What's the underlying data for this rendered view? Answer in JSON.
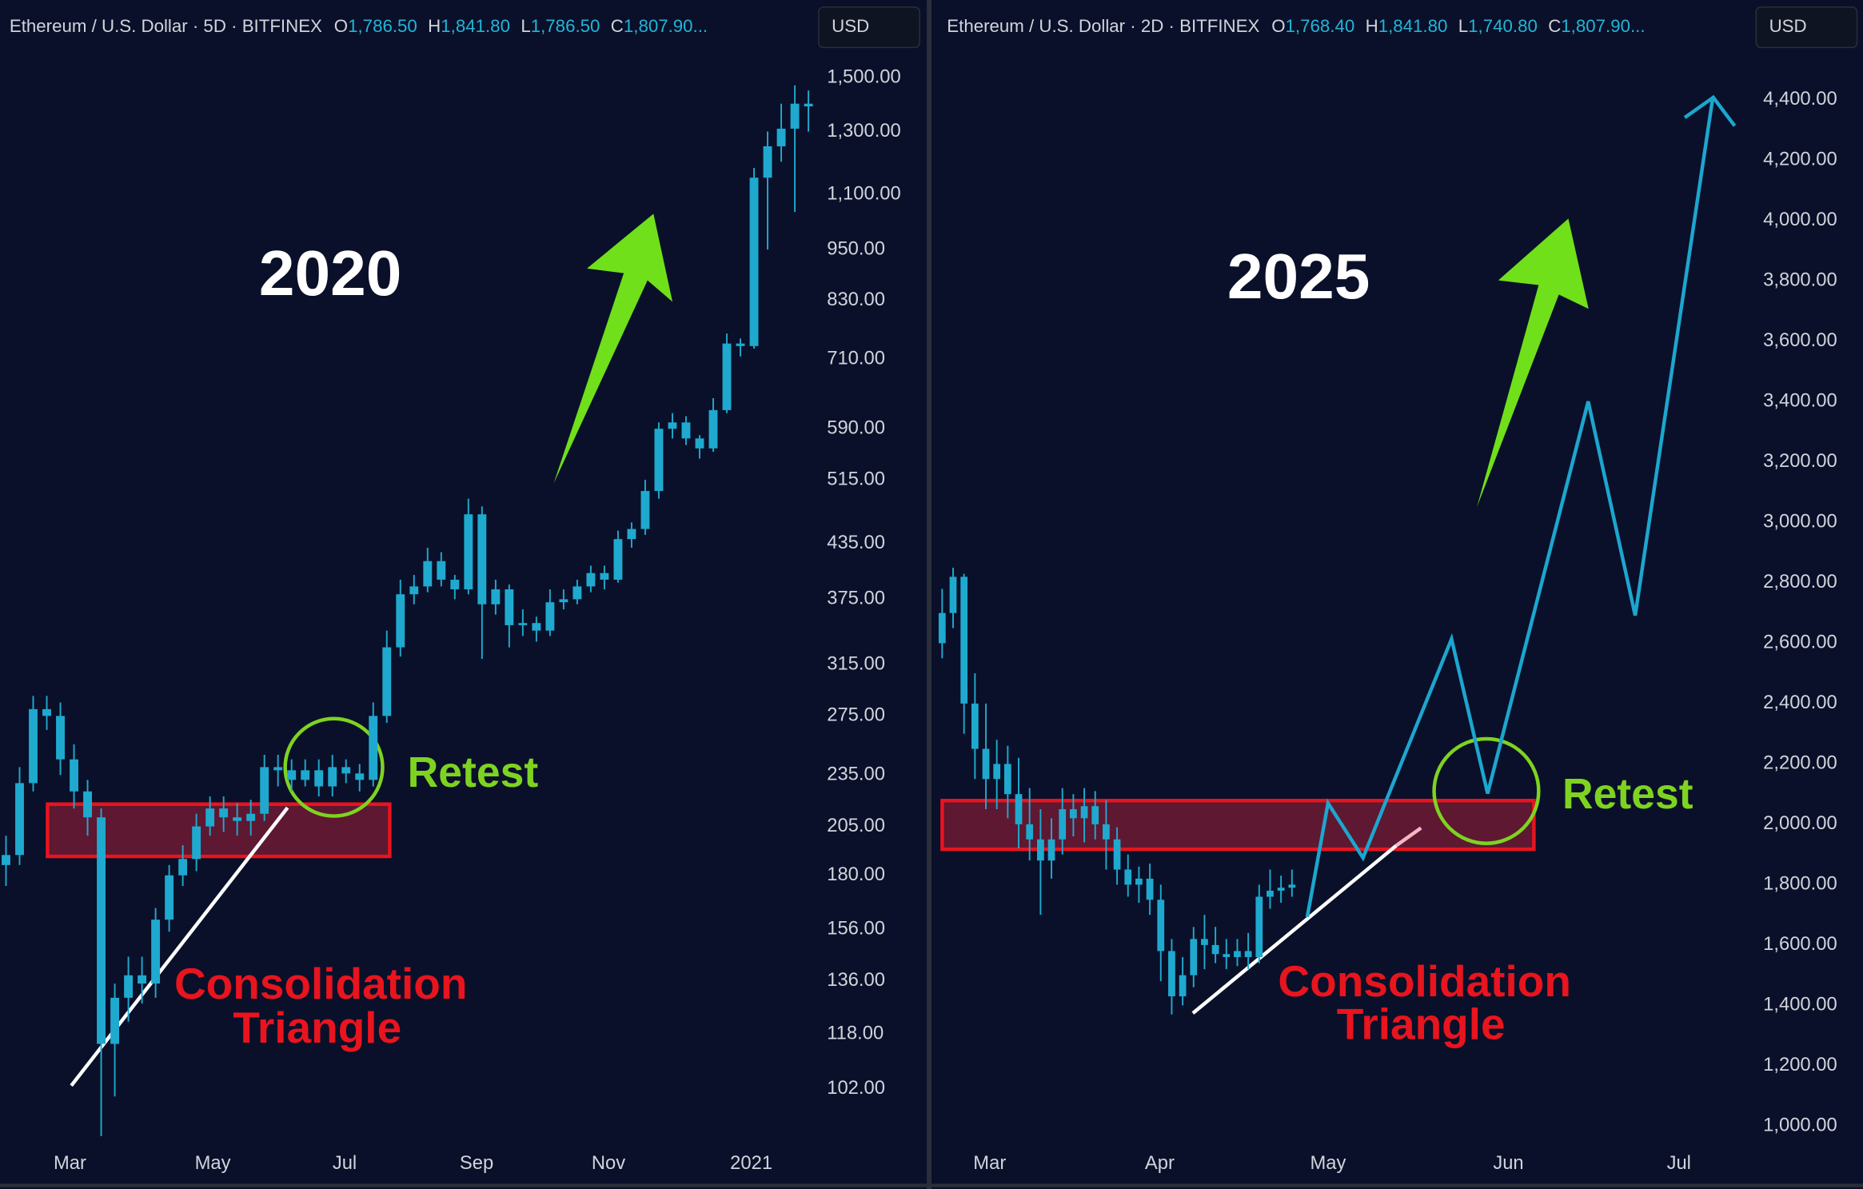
{
  "chart_data": [
    {
      "type": "candlestick",
      "symbol": "Ethereum / U.S. Dollar · 5D · BITFINEX",
      "ohlc": [
        {
          "key": "O",
          "value": "1,786.50"
        },
        {
          "key": "H",
          "value": "1,841.80"
        },
        {
          "key": "L",
          "value": "1,786.50"
        },
        {
          "key": "C",
          "value": "1,807.90..."
        }
      ],
      "currency": "USD",
      "title": "2020",
      "annotations": {
        "retest": "Retest",
        "pattern": [
          "Consolidation",
          "Triangle"
        ]
      },
      "log_scale": true,
      "xlim": [
        -0.44,
        67.7
      ],
      "xticks": [
        {
          "value": 4.7,
          "label": "Mar"
        },
        {
          "value": 15.2,
          "label": "May"
        },
        {
          "value": 24.9,
          "label": "Jul"
        },
        {
          "value": 34.6,
          "label": "Sep"
        },
        {
          "value": 44.3,
          "label": "Nov"
        },
        {
          "value": 54.8,
          "label": "2021"
        }
      ],
      "ylim": [
        89,
        1600
      ],
      "yticks": [
        {
          "value": 1500,
          "label": "1,500.00"
        },
        {
          "value": 1300,
          "label": "1,300.00"
        },
        {
          "value": 1100,
          "label": "1,100.00"
        },
        {
          "value": 950,
          "label": "950.00"
        },
        {
          "value": 830,
          "label": "830.00"
        },
        {
          "value": 710,
          "label": "710.00"
        },
        {
          "value": 590,
          "label": "590.00"
        },
        {
          "value": 515,
          "label": "515.00"
        },
        {
          "value": 435,
          "label": "435.00"
        },
        {
          "value": 375,
          "label": "375.00"
        },
        {
          "value": 315,
          "label": "315.00"
        },
        {
          "value": 275,
          "label": "275.00"
        },
        {
          "value": 235,
          "label": "235.00"
        },
        {
          "value": 205,
          "label": "205.00"
        },
        {
          "value": 180,
          "label": "180.00"
        },
        {
          "value": 156,
          "label": "156.00"
        },
        {
          "value": 136,
          "label": "136.00"
        },
        {
          "value": 118,
          "label": "118.00"
        },
        {
          "value": 102,
          "label": "102.00"
        }
      ],
      "series": [
        {
          "type": "candlestick",
          "color": "#1fa9cf",
          "open": [
            185,
            190,
            230,
            280,
            275,
            245,
            225,
            210,
            115,
            130,
            138,
            135,
            160,
            180,
            188,
            205,
            215,
            210,
            208,
            212,
            240,
            238,
            232,
            238,
            228,
            240,
            236,
            232,
            275,
            330,
            380,
            388,
            415,
            395,
            385,
            470,
            370,
            385,
            350,
            352,
            345,
            372,
            375,
            388,
            402,
            395,
            440,
            452,
            500,
            590,
            600,
            575,
            560,
            620,
            740,
            735,
            1150,
            1250,
            1310,
            1400
          ],
          "high": [
            200,
            240,
            290,
            290,
            285,
            255,
            232,
            215,
            135,
            145,
            145,
            165,
            185,
            195,
            212,
            222,
            222,
            218,
            220,
            248,
            248,
            245,
            245,
            245,
            248,
            245,
            242,
            285,
            345,
            395,
            400,
            430,
            425,
            400,
            490,
            480,
            395,
            390,
            365,
            358,
            385,
            385,
            395,
            410,
            410,
            450,
            460,
            515,
            600,
            615,
            610,
            580,
            640,
            760,
            750,
            1180,
            1300,
            1400,
            1470,
            1450
          ],
          "low": [
            175,
            185,
            225,
            265,
            235,
            215,
            200,
            90,
            100,
            122,
            128,
            130,
            155,
            175,
            182,
            200,
            202,
            200,
            200,
            208,
            228,
            225,
            228,
            222,
            222,
            230,
            225,
            228,
            270,
            322,
            370,
            382,
            388,
            375,
            380,
            320,
            360,
            330,
            340,
            335,
            340,
            365,
            370,
            382,
            385,
            392,
            430,
            445,
            490,
            575,
            565,
            545,
            555,
            615,
            715,
            730,
            950,
            1200,
            1050,
            1300
          ],
          "close": [
            190,
            230,
            280,
            275,
            245,
            225,
            210,
            115,
            130,
            138,
            135,
            160,
            180,
            188,
            205,
            215,
            210,
            208,
            212,
            240,
            238,
            232,
            238,
            228,
            240,
            236,
            232,
            275,
            330,
            380,
            388,
            415,
            395,
            385,
            470,
            370,
            385,
            350,
            352,
            345,
            372,
            375,
            388,
            402,
            395,
            440,
            452,
            500,
            590,
            600,
            575,
            560,
            620,
            740,
            735,
            1150,
            1250,
            1310,
            1400,
            1390
          ]
        }
      ]
    },
    {
      "type": "candlestick",
      "symbol": "Ethereum / U.S. Dollar · 2D · BITFINEX",
      "ohlc": [
        {
          "key": "O",
          "value": "1,768.40"
        },
        {
          "key": "H",
          "value": "1,841.80"
        },
        {
          "key": "L",
          "value": "1,740.80"
        },
        {
          "key": "C",
          "value": "1,807.90..."
        }
      ],
      "currency": "USD",
      "title": "2025",
      "annotations": {
        "retest": "Retest",
        "pattern": [
          "Consolidation",
          "Triangle"
        ]
      },
      "log_scale": false,
      "xlim": [
        -0.54,
        84.24
      ],
      "xticks": [
        {
          "value": 4.35,
          "label": "Mar"
        },
        {
          "value": 19.9,
          "label": "Apr"
        },
        {
          "value": 35.3,
          "label": "May"
        },
        {
          "value": 51.8,
          "label": "Jun"
        },
        {
          "value": 67.4,
          "label": "Jul"
        }
      ],
      "ylim": [
        953,
        4554
      ],
      "yticks": [
        {
          "value": 4400,
          "label": "4,400.00"
        },
        {
          "value": 4200,
          "label": "4,200.00"
        },
        {
          "value": 4000,
          "label": "4,000.00"
        },
        {
          "value": 3800,
          "label": "3,800.00"
        },
        {
          "value": 3600,
          "label": "3,600.00"
        },
        {
          "value": 3400,
          "label": "3,400.00"
        },
        {
          "value": 3200,
          "label": "3,200.00"
        },
        {
          "value": 3000,
          "label": "3,000.00"
        },
        {
          "value": 2800,
          "label": "2,800.00"
        },
        {
          "value": 2600,
          "label": "2,600.00"
        },
        {
          "value": 2400,
          "label": "2,400.00"
        },
        {
          "value": 2200,
          "label": "2,200.00"
        },
        {
          "value": 2000,
          "label": "2,000.00"
        },
        {
          "value": 1800,
          "label": "1,800.00"
        },
        {
          "value": 1600,
          "label": "1,600.00"
        },
        {
          "value": 1400,
          "label": "1,400.00"
        },
        {
          "value": 1200,
          "label": "1,200.00"
        },
        {
          "value": 1000,
          "label": "1,000.00"
        }
      ],
      "series": [
        {
          "type": "candlestick",
          "color": "#1fa9cf",
          "open": [
            2600,
            2700,
            2820,
            2400,
            2250,
            2150,
            2200,
            2100,
            2000,
            1950,
            1880,
            1950,
            2050,
            2020,
            2060,
            2000,
            1950,
            1850,
            1800,
            1820,
            1750,
            1580,
            1430,
            1500,
            1620,
            1600,
            1570,
            1560,
            1580,
            1560,
            1760,
            1780,
            1790
          ],
          "high": [
            2780,
            2850,
            2830,
            2500,
            2400,
            2280,
            2260,
            2220,
            2120,
            2050,
            2020,
            2120,
            2100,
            2120,
            2110,
            2080,
            1990,
            1900,
            1860,
            1870,
            1800,
            1620,
            1560,
            1660,
            1700,
            1660,
            1620,
            1620,
            1640,
            1800,
            1850,
            1830,
            1850
          ],
          "low": [
            2550,
            2650,
            2300,
            2150,
            2050,
            2050,
            2020,
            1920,
            1880,
            1700,
            1820,
            1900,
            1960,
            1940,
            1950,
            1850,
            1800,
            1760,
            1740,
            1700,
            1480,
            1370,
            1400,
            1460,
            1520,
            1540,
            1520,
            1530,
            1520,
            1540,
            1720,
            1740,
            1760
          ],
          "close": [
            2700,
            2820,
            2400,
            2250,
            2150,
            2200,
            2100,
            2000,
            1950,
            1880,
            1950,
            2050,
            2020,
            2060,
            2000,
            1950,
            1850,
            1800,
            1820,
            1750,
            1580,
            1430,
            1500,
            1620,
            1600,
            1570,
            1560,
            1580,
            1560,
            1760,
            1780,
            1790,
            1800
          ]
        },
        {
          "type": "line",
          "color": "#1ca6cf",
          "x": [
            33.4,
            35.3,
            38.5,
            46.6,
            49.9,
            59.1,
            63.4,
            70.5
          ],
          "values": [
            1693,
            2070,
            1889,
            2614,
            2102,
            3401,
            2692,
            4408
          ]
        }
      ]
    }
  ]
}
